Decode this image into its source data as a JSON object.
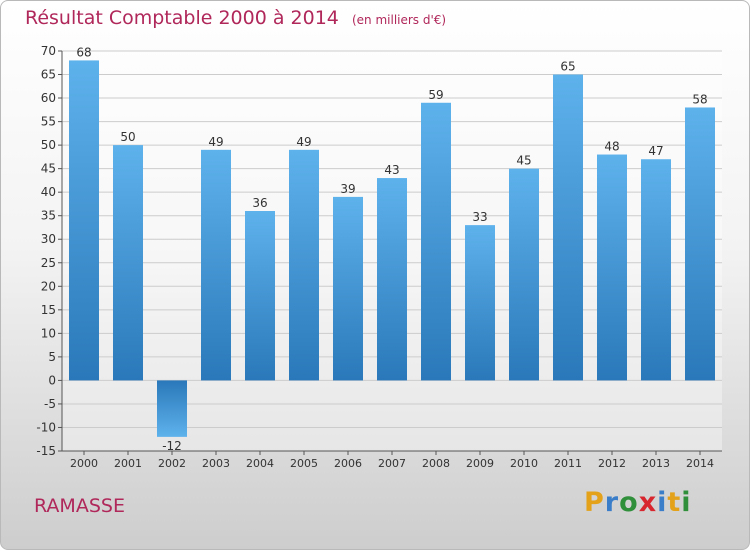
{
  "title": "Résultat Comptable 2000 à 2014",
  "subtitle": "(en milliers d'€)",
  "place": "RAMASSE",
  "logo_text": "Proxiti",
  "colors": {
    "accent": "#b0275a",
    "bar_top": "#5eb2ec",
    "bar_bottom": "#2a78b9",
    "grid": "#cccccc"
  },
  "chart_data": {
    "type": "bar",
    "categories": [
      "2000",
      "2001",
      "2002",
      "2003",
      "2004",
      "2005",
      "2006",
      "2007",
      "2008",
      "2009",
      "2010",
      "2011",
      "2012",
      "2013",
      "2014"
    ],
    "values": [
      68,
      50,
      -12,
      49,
      36,
      49,
      39,
      43,
      59,
      33,
      45,
      65,
      48,
      47,
      58
    ],
    "ylim": [
      -15,
      70
    ],
    "yticks": [
      -15,
      -10,
      -5,
      0,
      5,
      10,
      15,
      20,
      25,
      30,
      35,
      40,
      45,
      50,
      55,
      60,
      65,
      70
    ],
    "grid": true,
    "legend": "none"
  }
}
